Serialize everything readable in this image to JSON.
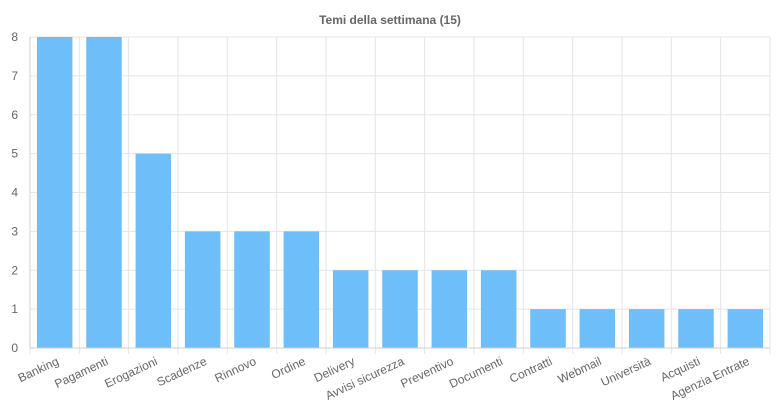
{
  "chart_data": {
    "type": "bar",
    "title": "Temi della settimana (15)",
    "categories": [
      "Banking",
      "Pagamenti",
      "Erogazioni",
      "Scadenze",
      "Rinnovo",
      "Ordine",
      "Delivery",
      "Avvisi sicurezza",
      "Preventivo",
      "Documenti",
      "Contratti",
      "Webmail",
      "Università",
      "Acquisti",
      "Agenzia Entrate"
    ],
    "values": [
      8,
      8,
      5,
      3,
      3,
      3,
      2,
      2,
      2,
      2,
      1,
      1,
      1,
      1,
      1
    ],
    "xlabel": "",
    "ylabel": "",
    "ylim": [
      0,
      8
    ],
    "yticks": [
      "0",
      "1",
      "2",
      "3",
      "4",
      "5",
      "6",
      "7",
      "8"
    ],
    "grid": true,
    "bar_color": "#6ebef9"
  }
}
